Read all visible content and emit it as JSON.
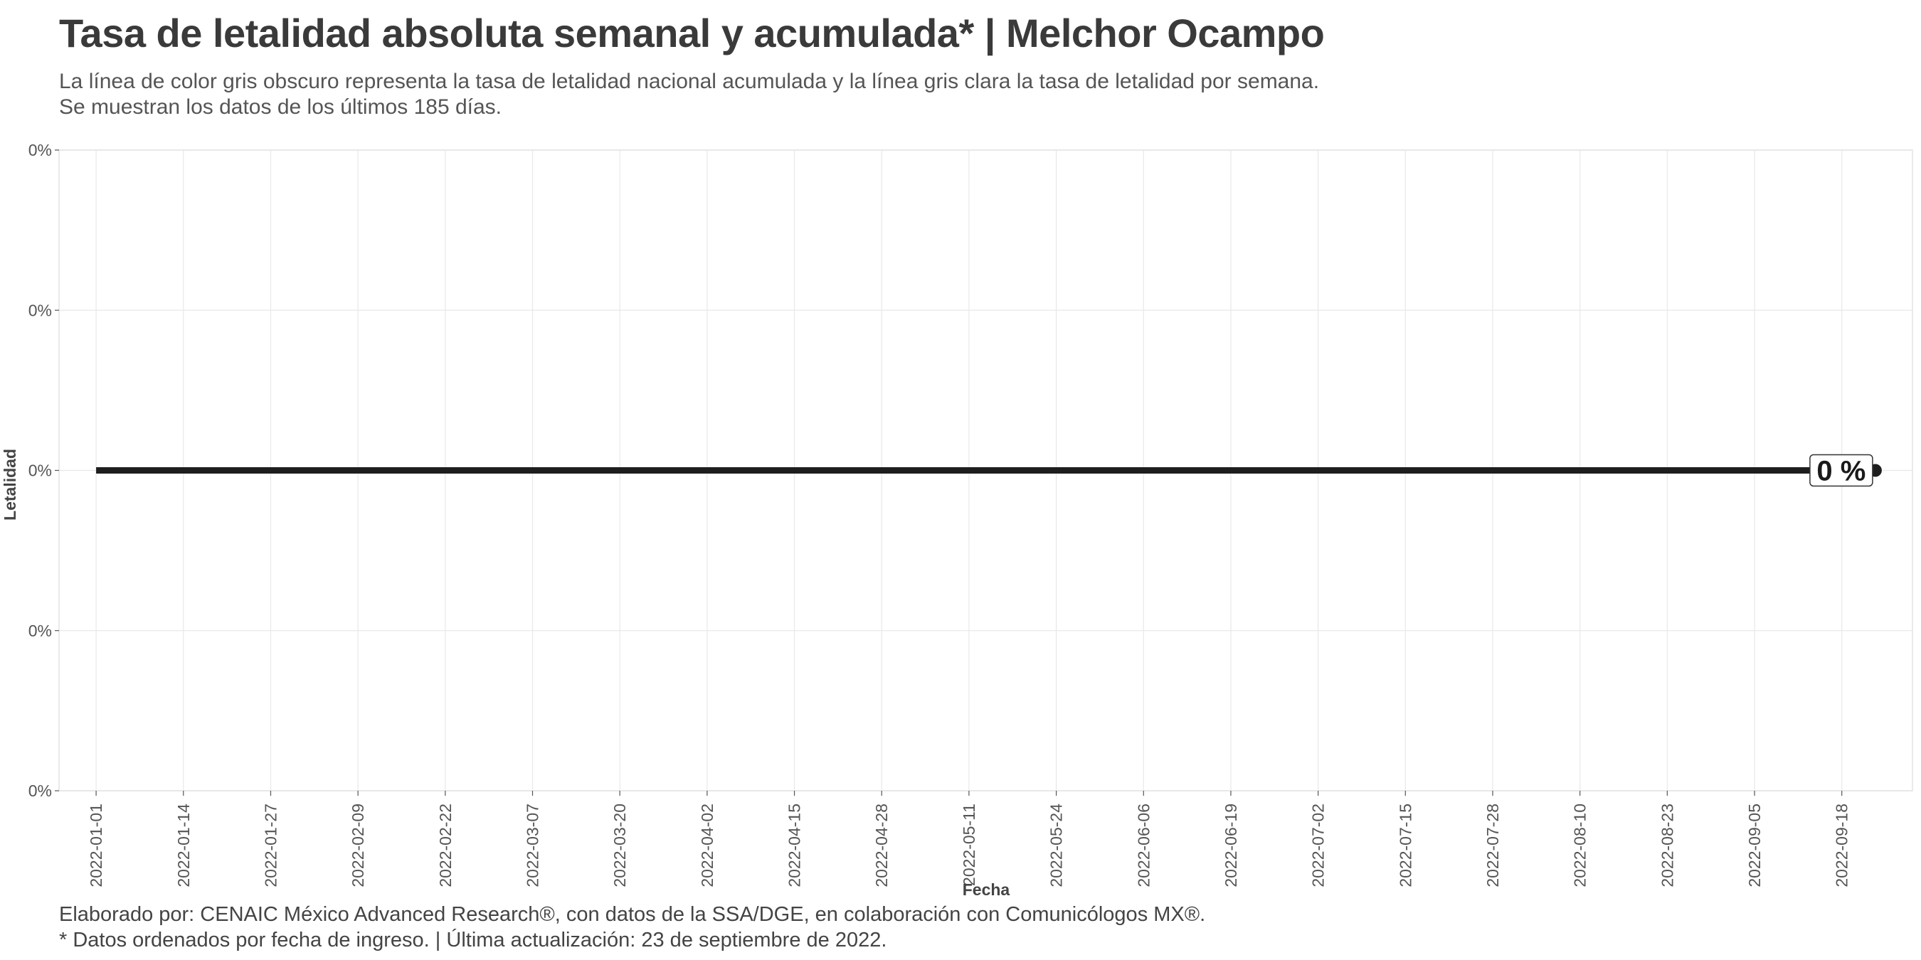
{
  "header": {
    "title": "Tasa de letalidad absoluta semanal y acumulada* | Melchor Ocampo",
    "subtitle_line1": "La línea de color gris obscuro representa la tasa de letalidad nacional acumulada y la línea gris clara la tasa de letalidad por semana.",
    "subtitle_line2": "Se muestran los datos de los últimos 185 días."
  },
  "footer": {
    "caption_line1": "Elaborado por: CENAIC México Advanced Research®, con datos de la SSA/DGE, en colaboración con Comunicólogos MX®.",
    "caption_line2": "* Datos ordenados por fecha de ingreso. | Última actualización: 23 de septiembre de 2022."
  },
  "colors": {
    "line_cumulative": "#1e1e1e",
    "grid": "#e8e8e8",
    "panel_border": "#e3e3e3"
  },
  "chart_data": {
    "type": "line",
    "xlabel": "Fecha",
    "ylabel": "Letalidad",
    "x_range": [
      "2022-01-01",
      "2022-09-23"
    ],
    "x_ticks": [
      "2022-01-01",
      "2022-01-14",
      "2022-01-27",
      "2022-02-09",
      "2022-02-22",
      "2022-03-07",
      "2022-03-20",
      "2022-04-02",
      "2022-04-15",
      "2022-04-28",
      "2022-05-11",
      "2022-05-24",
      "2022-06-06",
      "2022-06-19",
      "2022-07-02",
      "2022-07-15",
      "2022-07-28",
      "2022-08-10",
      "2022-08-23",
      "2022-09-05",
      "2022-09-18"
    ],
    "y_ticks": [
      "0%",
      "0%",
      "0%",
      "0%",
      "0%"
    ],
    "ylim": [
      -1,
      1
    ],
    "grid": true,
    "series": [
      {
        "x": [
          "2022-01-01",
          "2022-09-23"
        ],
        "values": [
          0,
          0
        ]
      }
    ],
    "end_label": "0 %"
  }
}
